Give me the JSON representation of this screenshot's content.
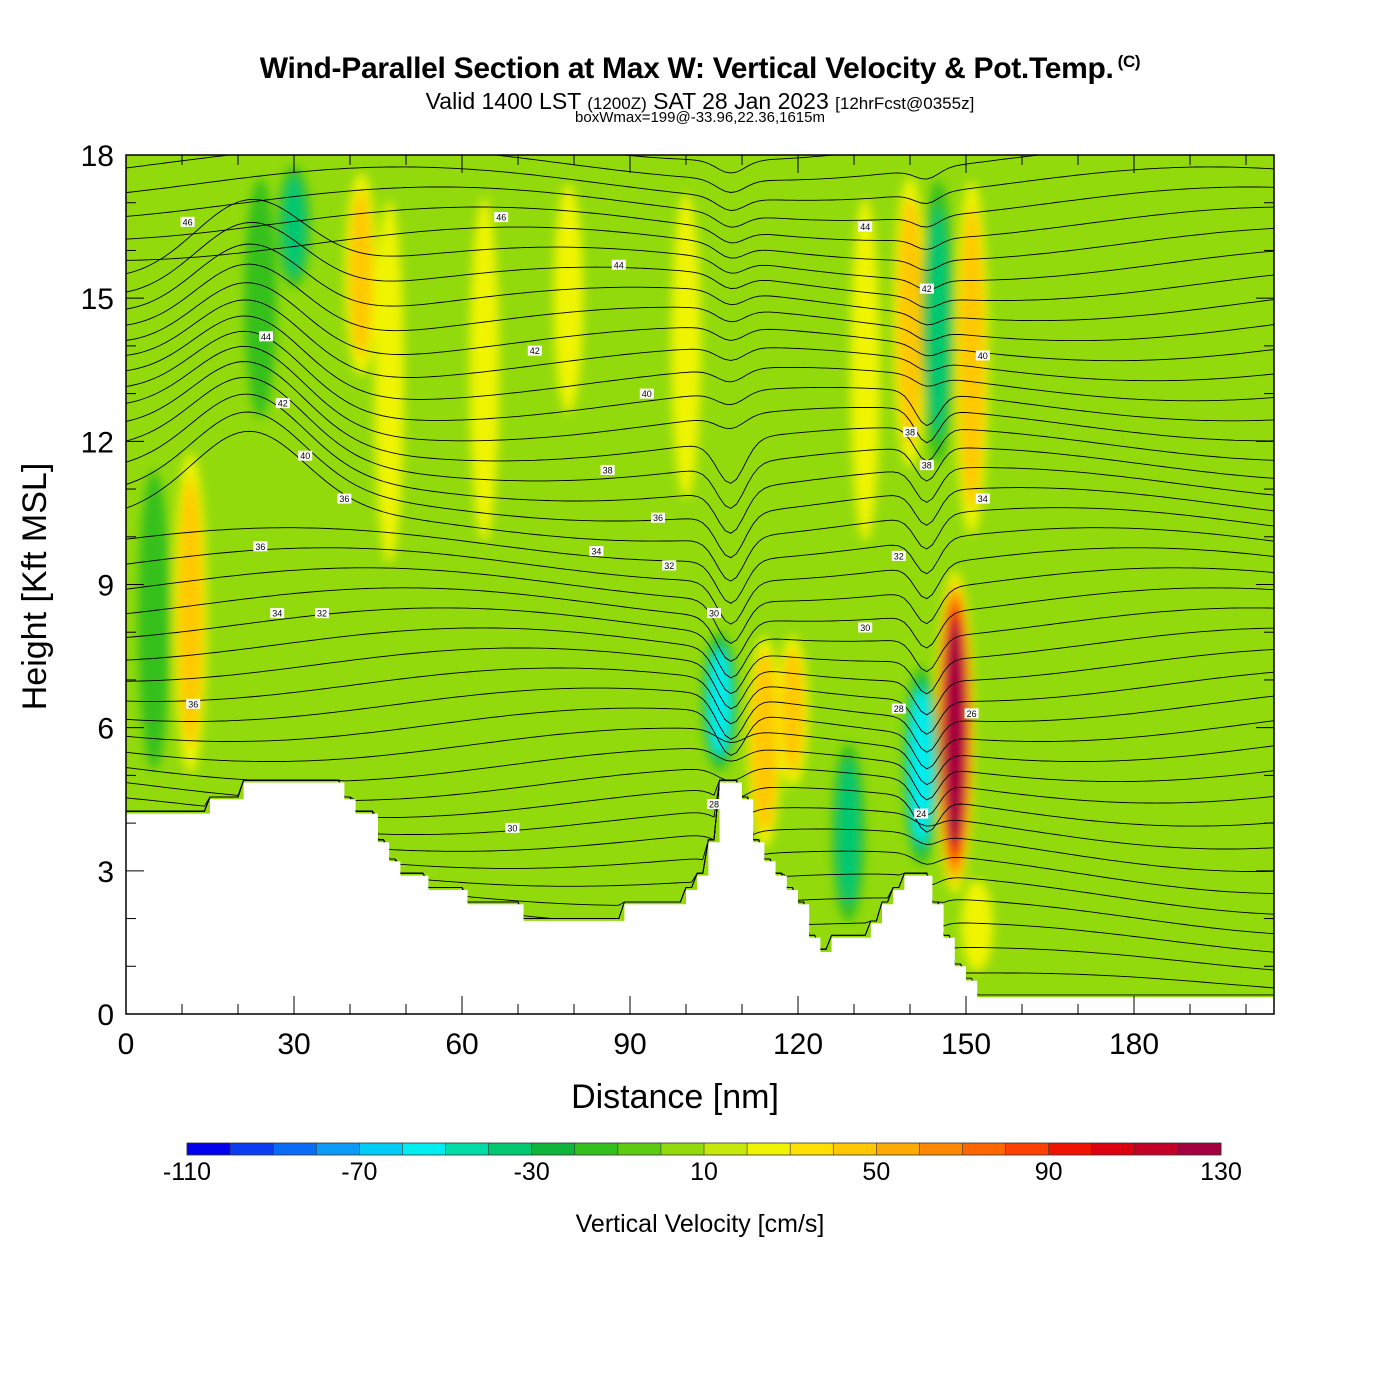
{
  "chart_data": {
    "type": "heatmap",
    "title": "Wind-Parallel Section at Max W: Vertical Velocity & Pot.Temp.",
    "title_mark": "(C)",
    "subtitle_prefix": "Valid 1400 LST",
    "subtitle_utc": "(1200Z)",
    "subtitle_date": "SAT 28 Jan 2023",
    "subtitle_fcst": "[12hrFcst@0355z]",
    "box_info": "boxWmax=199@-33.96,22.36,1615m",
    "xlabel": "Distance [nm]",
    "ylabel": "Height [Kft MSL]",
    "xlim": [
      0,
      205
    ],
    "ylim": [
      0,
      18
    ],
    "xticks": [
      0,
      30,
      60,
      90,
      120,
      150,
      180
    ],
    "yticks": [
      0,
      3,
      6,
      9,
      12,
      15,
      18
    ],
    "grid": false,
    "colorbar": {
      "label": "Vertical Velocity [cm/s]",
      "min": -110,
      "max": 170,
      "step": 10,
      "tick_labels": [
        -110,
        -70,
        -30,
        10,
        50,
        90,
        130
      ],
      "colors": [
        "#0000ee",
        "#0a3cf2",
        "#0a6cf6",
        "#0a9af8",
        "#00ccf8",
        "#00eef0",
        "#00dca8",
        "#00c870",
        "#10b43a",
        "#34c01c",
        "#5ccc10",
        "#92da0c",
        "#c8e80a",
        "#f0f400",
        "#ffe000",
        "#ffc800",
        "#ffaa00",
        "#ff8800",
        "#ff6600",
        "#ff4000",
        "#f01400",
        "#dc0010",
        "#c40028",
        "#a40040"
      ]
    },
    "terrain_profile": [
      [
        0,
        4.2
      ],
      [
        15,
        4.2
      ],
      [
        15,
        4.5
      ],
      [
        21,
        4.5
      ],
      [
        21,
        4.85
      ],
      [
        39,
        4.85
      ],
      [
        39,
        4.5
      ],
      [
        41,
        4.5
      ],
      [
        41,
        4.2
      ],
      [
        45,
        4.2
      ],
      [
        45,
        3.6
      ],
      [
        47,
        3.6
      ],
      [
        47,
        3.2
      ],
      [
        49,
        3.2
      ],
      [
        49,
        2.9
      ],
      [
        54,
        2.9
      ],
      [
        54,
        2.6
      ],
      [
        61,
        2.6
      ],
      [
        61,
        2.3
      ],
      [
        71,
        2.3
      ],
      [
        71,
        1.95
      ],
      [
        89,
        1.95
      ],
      [
        89,
        2.3
      ],
      [
        100,
        2.3
      ],
      [
        100,
        2.6
      ],
      [
        102,
        2.6
      ],
      [
        102,
        2.9
      ],
      [
        104,
        2.9
      ],
      [
        104,
        3.6
      ],
      [
        106,
        3.6
      ],
      [
        106,
        4.85
      ],
      [
        110,
        4.85
      ],
      [
        110,
        4.5
      ],
      [
        112,
        4.5
      ],
      [
        112,
        3.6
      ],
      [
        114,
        3.6
      ],
      [
        114,
        3.2
      ],
      [
        116,
        3.2
      ],
      [
        116,
        2.9
      ],
      [
        118,
        2.9
      ],
      [
        118,
        2.6
      ],
      [
        120,
        2.6
      ],
      [
        120,
        2.3
      ],
      [
        122,
        2.3
      ],
      [
        122,
        1.6
      ],
      [
        124,
        1.6
      ],
      [
        124,
        1.3
      ],
      [
        126,
        1.3
      ],
      [
        126,
        1.6
      ],
      [
        133,
        1.6
      ],
      [
        133,
        1.9
      ],
      [
        135,
        1.9
      ],
      [
        135,
        2.3
      ],
      [
        137,
        2.3
      ],
      [
        137,
        2.6
      ],
      [
        139,
        2.6
      ],
      [
        139,
        2.9
      ],
      [
        144,
        2.9
      ],
      [
        144,
        2.3
      ],
      [
        146,
        2.3
      ],
      [
        146,
        1.6
      ],
      [
        148,
        1.6
      ],
      [
        148,
        1.0
      ],
      [
        150,
        1.0
      ],
      [
        150,
        0.7
      ],
      [
        152,
        0.7
      ],
      [
        152,
        0.35
      ],
      [
        205,
        0.35
      ]
    ],
    "updraft_bands": [
      {
        "x": 11.5,
        "zmin": 4.5,
        "zmax": 12.3,
        "w": 45
      },
      {
        "x": 42,
        "zmin": 13,
        "zmax": 18,
        "w": 40
      },
      {
        "x": 47,
        "zmin": 8.5,
        "zmax": 18,
        "w": 25
      },
      {
        "x": 64,
        "zmin": 9,
        "zmax": 18,
        "w": 25
      },
      {
        "x": 79,
        "zmin": 12,
        "zmax": 18,
        "w": 25
      },
      {
        "x": 100,
        "zmin": 10,
        "zmax": 18,
        "w": 25
      },
      {
        "x": 114,
        "zmin": 3.2,
        "zmax": 8.2,
        "w": 55
      },
      {
        "x": 119,
        "zmin": 4.5,
        "zmax": 8.2,
        "w": 40
      },
      {
        "x": 132,
        "zmin": 9,
        "zmax": 18,
        "w": 25
      },
      {
        "x": 140,
        "zmin": 11,
        "zmax": 18,
        "w": 50
      },
      {
        "x": 148,
        "zmin": 2.3,
        "zmax": 9.5,
        "w": 135
      },
      {
        "x": 151,
        "zmin": 9.5,
        "zmax": 18,
        "w": 50
      },
      {
        "x": 152,
        "zmin": 0.7,
        "zmax": 3,
        "w": 35
      }
    ],
    "downdraft_bands": [
      {
        "x": 5,
        "zmin": 4.5,
        "zmax": 12,
        "w": -35
      },
      {
        "x": 24,
        "zmin": 12,
        "zmax": 18,
        "w": -35
      },
      {
        "x": 30,
        "zmin": 15,
        "zmax": 18,
        "w": -40
      },
      {
        "x": 106,
        "zmin": 4.9,
        "zmax": 8.2,
        "w": -60
      },
      {
        "x": 129,
        "zmin": 1.6,
        "zmax": 6,
        "w": -40
      },
      {
        "x": 142,
        "zmin": 2.9,
        "zmax": 7.5,
        "w": -70
      },
      {
        "x": 145,
        "zmin": 11,
        "zmax": 18,
        "w": -40
      }
    ],
    "theta_labels": [
      {
        "text": "46",
        "x": 11,
        "z": 16.6
      },
      {
        "text": "46",
        "x": 67,
        "z": 16.7
      },
      {
        "text": "44",
        "x": 88,
        "z": 15.7
      },
      {
        "text": "44",
        "x": 132,
        "z": 16.5
      },
      {
        "text": "42",
        "x": 143,
        "z": 15.2
      },
      {
        "text": "44",
        "x": 25,
        "z": 14.2
      },
      {
        "text": "42",
        "x": 73,
        "z": 13.9
      },
      {
        "text": "40",
        "x": 153,
        "z": 13.8
      },
      {
        "text": "42",
        "x": 28,
        "z": 12.8
      },
      {
        "text": "40",
        "x": 93,
        "z": 13.0
      },
      {
        "text": "38",
        "x": 140,
        "z": 12.2
      },
      {
        "text": "40",
        "x": 32,
        "z": 11.7
      },
      {
        "text": "38",
        "x": 86,
        "z": 11.4
      },
      {
        "text": "38",
        "x": 143,
        "z": 11.5
      },
      {
        "text": "36",
        "x": 39,
        "z": 10.8
      },
      {
        "text": "34",
        "x": 153,
        "z": 10.8
      },
      {
        "text": "36",
        "x": 95,
        "z": 10.4
      },
      {
        "text": "36",
        "x": 24,
        "z": 9.8
      },
      {
        "text": "34",
        "x": 84,
        "z": 9.7
      },
      {
        "text": "32",
        "x": 138,
        "z": 9.6
      },
      {
        "text": "32",
        "x": 97,
        "z": 9.4
      },
      {
        "text": "34",
        "x": 27,
        "z": 8.4
      },
      {
        "text": "32",
        "x": 35,
        "z": 8.4
      },
      {
        "text": "30",
        "x": 105,
        "z": 8.4
      },
      {
        "text": "30",
        "x": 132,
        "z": 8.1
      },
      {
        "text": "28",
        "x": 138,
        "z": 6.4
      },
      {
        "text": "26",
        "x": 151,
        "z": 6.3
      },
      {
        "text": "36",
        "x": 12,
        "z": 6.5
      },
      {
        "text": "28",
        "x": 105,
        "z": 4.4
      },
      {
        "text": "24",
        "x": 142,
        "z": 4.2
      },
      {
        "text": "30",
        "x": 69,
        "z": 3.9
      }
    ]
  }
}
